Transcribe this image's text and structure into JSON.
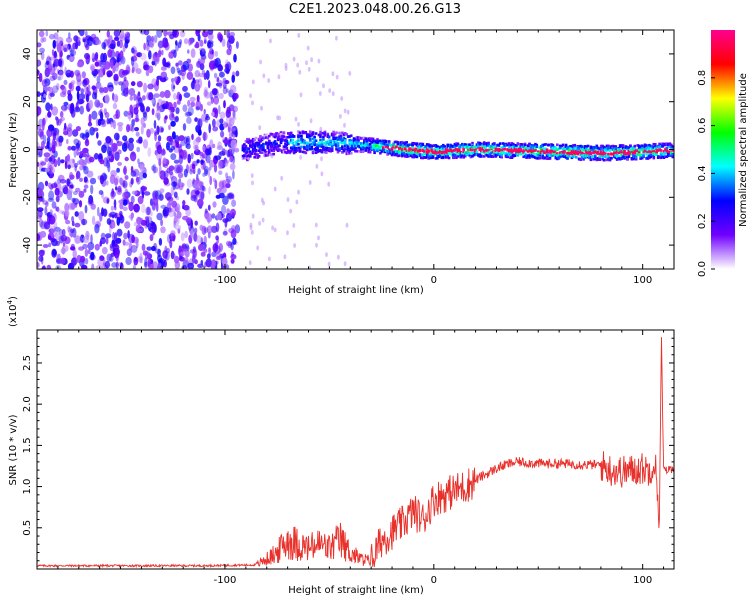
{
  "title": "C2E1.2023.048.00.26.G13",
  "chart_data": [
    {
      "type": "heatmap",
      "xlabel": "Height of straight line (km)",
      "ylabel": "Frequency (Hz)",
      "xlim": [
        -190,
        115
      ],
      "ylim": [
        -50,
        50
      ],
      "xticks": [
        -100,
        0,
        100
      ],
      "yticks": [
        -40,
        -20,
        0,
        20,
        40
      ],
      "colorbar": {
        "label": "Normalized spectral amplitude",
        "range": [
          0,
          1
        ],
        "ticks": [
          "0.0",
          "0.2",
          "0.4",
          "0.6",
          "0.8"
        ],
        "colors": [
          "#ffffff",
          "#7000ff",
          "#0000ff",
          "#00ffff",
          "#00ff00",
          "#ffff00",
          "#ff0000",
          "#ff0090"
        ]
      },
      "ridge": [
        [
          -90,
          0
        ],
        [
          -80,
          2
        ],
        [
          -70,
          3
        ],
        [
          -60,
          3
        ],
        [
          -50,
          3
        ],
        [
          -40,
          2.5
        ],
        [
          -30,
          1.5
        ],
        [
          -20,
          0.5
        ],
        [
          0,
          -1
        ],
        [
          20,
          0
        ],
        [
          40,
          -0.5
        ],
        [
          60,
          -1
        ],
        [
          80,
          -1.5
        ],
        [
          100,
          -1
        ],
        [
          110,
          -0.5
        ]
      ]
    },
    {
      "type": "line",
      "xlabel": "Height of straight line (km)",
      "ylabel": "SNR (10 * v/v)",
      "yunit": "(x10^4)",
      "xlim": [
        -190,
        115
      ],
      "ylim": [
        0,
        2.9
      ],
      "xticks": [
        -100,
        0,
        100
      ],
      "yticks": [
        "0.5",
        "1.0",
        "1.5",
        "2.0",
        "2.5"
      ],
      "series": [
        {
          "color": "#e8312b",
          "x": [
            -190,
            -150,
            -110,
            -85,
            -80,
            -75,
            -70,
            -65,
            -60,
            -55,
            -50,
            -45,
            -40,
            -35,
            -30,
            -25,
            -20,
            -15,
            -10,
            -5,
            0,
            5,
            10,
            15,
            20,
            25,
            30,
            35,
            40,
            50,
            60,
            70,
            80,
            85,
            90,
            95,
            100,
            103,
            106,
            108,
            109,
            110,
            111,
            115
          ],
          "y": [
            0.04,
            0.04,
            0.04,
            0.05,
            0.12,
            0.2,
            0.35,
            0.3,
            0.25,
            0.3,
            0.25,
            0.35,
            0.2,
            0.12,
            0.1,
            0.35,
            0.45,
            0.55,
            0.7,
            0.6,
            0.85,
            0.9,
            0.95,
            1.0,
            1.08,
            1.15,
            1.22,
            1.27,
            1.3,
            1.28,
            1.28,
            1.27,
            1.26,
            1.2,
            1.18,
            1.2,
            1.22,
            1.2,
            1.3,
            0.6,
            2.8,
            1.2,
            1.2,
            1.22
          ]
        }
      ]
    }
  ]
}
